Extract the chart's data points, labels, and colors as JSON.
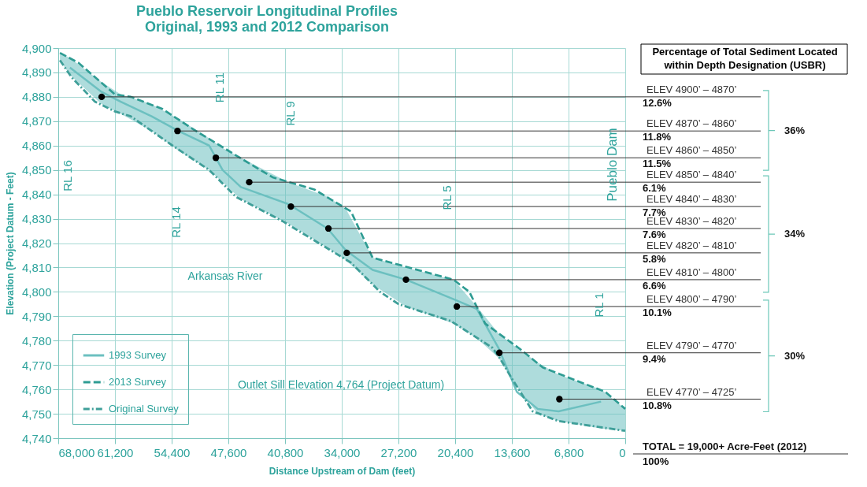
{
  "chart_data": {
    "type": "line",
    "title": "Pueblo Reservoir Longitudinal Profiles",
    "subtitle": "Original, 1993 and 2012 Comparison",
    "xlabel": "Distance Upstream of Dam (feet)",
    "ylabel": "Elevation (Project Datum - Feet)",
    "xlim": [
      68000,
      0
    ],
    "xticks": [
      {
        "value": 68000,
        "label": "68,000"
      },
      {
        "value": 61200,
        "label": "61,200"
      },
      {
        "value": 54400,
        "label": "54,400"
      },
      {
        "value": 47600,
        "label": "47,600"
      },
      {
        "value": 40800,
        "label": "40,800"
      },
      {
        "value": 34000,
        "label": "34,000"
      },
      {
        "value": 27200,
        "label": "27,200"
      },
      {
        "value": 20400,
        "label": "20,400"
      },
      {
        "value": 13600,
        "label": "13,600"
      },
      {
        "value": 6800,
        "label": "6,800"
      },
      0
    ],
    "ylim": [
      4740,
      4900
    ],
    "yticks": [
      {
        "value": 4740,
        "label": "4,740"
      },
      {
        "value": 4750,
        "label": "4,750"
      },
      {
        "value": 4760,
        "label": "4,760"
      },
      {
        "value": 4770,
        "label": "4,770"
      },
      {
        "value": 4780,
        "label": "4,780"
      },
      {
        "value": 4790,
        "label": "4,790"
      },
      {
        "value": 4800,
        "label": "4,800"
      },
      {
        "value": 4810,
        "label": "4,810"
      },
      {
        "value": 4820,
        "label": "4,820"
      },
      {
        "value": 4830,
        "label": "4,830"
      },
      {
        "value": 4840,
        "label": "4,840"
      },
      {
        "value": 4850,
        "label": "4,850"
      },
      {
        "value": 4860,
        "label": "4,860"
      },
      {
        "value": 4870,
        "label": "4,870"
      },
      {
        "value": 4880,
        "label": "4,880"
      },
      {
        "value": 4890,
        "label": "4,890"
      },
      {
        "value": 4900,
        "label": "4,900"
      }
    ],
    "grid": true,
    "legend": "bottom left",
    "series": [
      {
        "name": "1993 Survey",
        "color": "#6cc0c0",
        "line_style": "solid",
        "x": [
          67800,
          66600,
          62800,
          60500,
          56800,
          53600,
          49900,
          48300,
          46100,
          40400,
          35700,
          33500,
          30300,
          26300,
          20600,
          17800,
          15200,
          13000,
          10500,
          8000,
          2900,
          0
        ],
        "values": [
          null,
          4892,
          4882,
          4878,
          4872,
          4866,
          4860,
          4850,
          4843,
          4836,
          4826,
          4817,
          4809,
          4805,
          4797,
          4793,
          4777,
          4759,
          4752,
          4751,
          4755,
          null
        ],
        "upper": [
          4898,
          4896,
          4886,
          4881,
          4877,
          4871,
          4863,
          4859,
          4855,
          4845,
          4839,
          4834,
          4814,
          4810,
          4805,
          4794,
          4783,
          4777,
          4771,
          4766,
          4760,
          4752
        ],
        "lower": [
          4895,
          4889,
          4877,
          4873,
          4866,
          4858,
          4850,
          4845,
          4838,
          4828,
          4818,
          4813,
          4803,
          4794,
          4787,
          4781,
          4773,
          4761,
          4750,
          4747,
          4744,
          4743
        ]
      },
      {
        "name": "2013 Survey",
        "color": "#2e9c93",
        "line_style": "dashed",
        "x": [
          67800,
          65600,
          61200,
          59300,
          55500,
          51500,
          48600,
          46700,
          42300,
          37300,
          32900,
          30300,
          28100,
          20600,
          18700,
          16800,
          12400,
          9900,
          2400,
          0
        ],
        "values": [
          4898,
          4894,
          4881,
          4880,
          4875,
          4866,
          4860,
          4856,
          4847,
          4842,
          4833,
          4814,
          4812,
          4805,
          4800,
          4787,
          4776,
          4769,
          4759,
          4752
        ]
      },
      {
        "name": "Original Survey",
        "color": "#3f9f99",
        "line_style": "dashdot",
        "x": [
          67800,
          66400,
          63600,
          61200,
          59300,
          54300,
          49900,
          46700,
          41100,
          32900,
          29400,
          27200,
          20900,
          15900,
          14900,
          13700,
          11100,
          8000,
          0
        ],
        "values": [
          4895,
          4888,
          4878,
          4874,
          4872,
          4860,
          4850,
          4839,
          4829,
          4812,
          4800,
          4795,
          4788,
          4777,
          4772,
          4765,
          4751,
          4747,
          4743
        ]
      },
      {
        "type": "scatter",
        "color": "#000000",
        "marker": "circle",
        "x": [
          62800,
          53700,
          49100,
          45100,
          40100,
          35600,
          33400,
          26300,
          20200,
          15100,
          7900
        ],
        "values": [
          4880,
          4866,
          4855,
          4845,
          4835,
          4826,
          4816,
          4805,
          4794,
          4775,
          4756
        ]
      }
    ],
    "ref_lines": [
      {
        "axis": "y",
        "value": 4880,
        "label": "ELEV 4900’ – 4870’",
        "color": "#333333"
      },
      {
        "axis": "y",
        "value": 4866,
        "label": "ELEV 4870’ – 4860’",
        "color": "#333333"
      },
      {
        "axis": "y",
        "value": 4855,
        "label": "ELEV 4860’ – 4850’",
        "color": "#333333"
      },
      {
        "axis": "y",
        "value": 4845,
        "label": "ELEV 4850’ – 4840’",
        "color": "#333333"
      },
      {
        "axis": "y",
        "value": 4835,
        "label": "ELEV 4840’ – 4830’",
        "color": "#333333"
      },
      {
        "axis": "y",
        "value": 4826,
        "label": "ELEV 4830’ – 4820’",
        "color": "#333333"
      },
      {
        "axis": "y",
        "value": 4816,
        "label": "ELEV 4820’ – 4810’",
        "color": "#333333"
      },
      {
        "axis": "y",
        "value": 4805,
        "label": "ELEV 4810’ – 4800’",
        "color": "#333333"
      },
      {
        "axis": "y",
        "value": 4794,
        "label": "ELEV 4800’ – 4790’",
        "color": "#333333"
      },
      {
        "axis": "y",
        "value": 4775,
        "label": "ELEV 4790’ – 4770’",
        "color": "#333333"
      },
      {
        "axis": "y",
        "value": 4756,
        "label": "ELEV 4770’ – 4725’",
        "color": "#333333"
      }
    ],
    "annotations": [
      "Percentage of Total Sediment Located\nwithin Depth Designation (USBR)",
      "12.6%",
      "11.8%",
      "11.5%",
      "6.1%",
      "7.7%",
      "7.6%",
      "5.8%",
      "6.6%",
      "10.1%",
      "9.4%",
      "10.8%",
      "36%",
      "34%",
      "30%",
      "TOTAL = 19,000+ Acre-Feet (2012)",
      "100%",
      "RL 16",
      "RL 14",
      "RL 11",
      "RL 9",
      "RL 5",
      "RL 1",
      "Pueblo Dam",
      "Arkansas River",
      "Outlet Sill Elevation 4,764 (Project Datum)"
    ]
  }
}
